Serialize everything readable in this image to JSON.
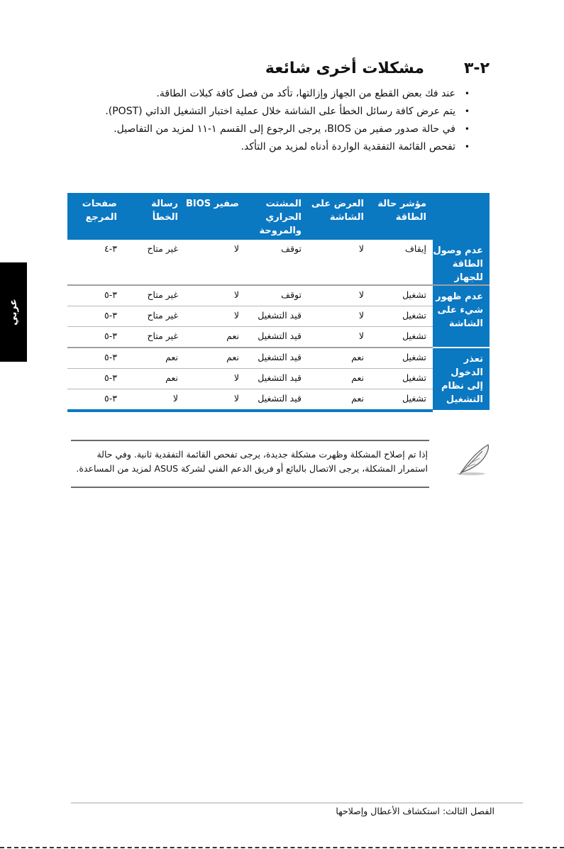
{
  "section": {
    "number": "٢-٣",
    "title": "مشكلات أخرى شائعة"
  },
  "bullets": [
    "عند فك بعض القطع من الجهاز وإزالتها، تأكد من فصل كافة كبلات الطاقة.",
    "يتم عرض كافة رسائل الخطأ على الشاشة خلال عملية اختبار التشغيل الذاتي (POST).",
    "في حالة صدور صفير من BIOS، يرجى الرجوع إلى القسم ١-١١ لمزيد من التفاصيل.",
    "تفحص القائمة التفقدية الواردة أدناه لمزيد من التأكد."
  ],
  "table": {
    "headers": [
      "",
      "مؤشر حالة الطاقة",
      "العرض على الشاشة",
      "المشتت الحراري والمروحة",
      "صفير BIOS",
      "رسالة الخطأ",
      "صفحات المرجع"
    ],
    "groups": [
      {
        "label": "عدم وصول الطاقة للجهاز",
        "rows": [
          [
            "إيقاف",
            "لا",
            "توقف",
            "لا",
            "غير متاح",
            "٣-٤"
          ]
        ]
      },
      {
        "label": "عدم ظهور شيء على الشاشة",
        "rows": [
          [
            "تشغيل",
            "لا",
            "توقف",
            "لا",
            "غير متاح",
            "٣-٥"
          ],
          [
            "تشغيل",
            "لا",
            "قيد التشغيل",
            "لا",
            "غير متاح",
            "٣-٥"
          ],
          [
            "تشغيل",
            "لا",
            "قيد التشغيل",
            "نعم",
            "غير متاح",
            "٣-٥"
          ]
        ]
      },
      {
        "label": "تعذر الدخول إلى نظام التشغيل",
        "rows": [
          [
            "تشغيل",
            "نعم",
            "قيد التشغيل",
            "نعم",
            "نعم",
            "٣-٥"
          ],
          [
            "تشغيل",
            "نعم",
            "قيد التشغيل",
            "لا",
            "نعم",
            "٣-٥"
          ],
          [
            "تشغيل",
            "نعم",
            "قيد التشغيل",
            "لا",
            "لا",
            "٣-٥"
          ]
        ]
      }
    ]
  },
  "note": {
    "icon": "feather-pen-icon",
    "text": "إذا تم إصلاح المشكلة وظهرت مشكلة جديدة، يرجى تفحص القائمة التفقدية ثانية. وفي حالة استمرار المشكلة، يرجى الاتصال بالبائع أو فريق الدعم الفني لشركة ASUS لمزيد من المساعدة."
  },
  "side_tab": "عربي",
  "footer": "الفصل الثالث: استكشاف الأعطال وإصلاحها",
  "colors": {
    "table_blue": "#0b78c2",
    "tab_black": "#000000"
  }
}
